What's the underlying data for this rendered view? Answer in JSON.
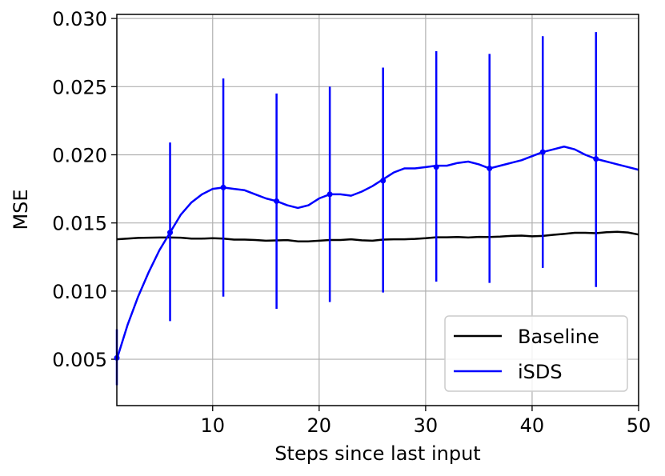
{
  "chart_data": {
    "type": "line",
    "xlabel": "Steps since last input",
    "ylabel": "MSE",
    "xlim": [
      1,
      50
    ],
    "ylim": [
      0.0016,
      0.0303
    ],
    "xticks": [
      10,
      20,
      30,
      40,
      50
    ],
    "yticks": [
      0.005,
      0.01,
      0.015,
      0.02,
      0.025,
      0.03
    ],
    "ytick_labels": [
      "0.005",
      "0.010",
      "0.015",
      "0.020",
      "0.025",
      "0.030"
    ],
    "grid": true,
    "legend_position": "lower-right",
    "series": [
      {
        "name": "Baseline",
        "color": "#000000",
        "x": [
          1,
          2,
          3,
          4,
          5,
          6,
          7,
          8,
          9,
          10,
          11,
          12,
          13,
          14,
          15,
          16,
          17,
          18,
          19,
          20,
          21,
          22,
          23,
          24,
          25,
          26,
          27,
          28,
          29,
          30,
          31,
          32,
          33,
          34,
          35,
          36,
          37,
          38,
          39,
          40,
          41,
          42,
          43,
          44,
          45,
          46,
          47,
          48,
          49,
          50
        ],
        "y": [
          0.0138,
          0.01385,
          0.0139,
          0.01392,
          0.01393,
          0.01393,
          0.01392,
          0.01385,
          0.01385,
          0.01388,
          0.01385,
          0.01378,
          0.01378,
          0.01375,
          0.0137,
          0.01372,
          0.01374,
          0.01365,
          0.01365,
          0.0137,
          0.01375,
          0.01375,
          0.0138,
          0.01373,
          0.0137,
          0.01378,
          0.0138,
          0.0138,
          0.01383,
          0.01388,
          0.01395,
          0.01395,
          0.01397,
          0.01393,
          0.01398,
          0.01397,
          0.014,
          0.01405,
          0.01407,
          0.01402,
          0.01405,
          0.01413,
          0.0142,
          0.01428,
          0.01428,
          0.01425,
          0.01432,
          0.01435,
          0.0143,
          0.01415
        ]
      },
      {
        "name": "iSDS",
        "color": "#0000ff",
        "x": [
          1,
          2,
          3,
          4,
          5,
          6,
          7,
          8,
          9,
          10,
          11,
          12,
          13,
          14,
          15,
          16,
          17,
          18,
          19,
          20,
          21,
          22,
          23,
          24,
          25,
          26,
          27,
          28,
          29,
          30,
          31,
          32,
          33,
          34,
          35,
          36,
          37,
          38,
          39,
          40,
          41,
          42,
          43,
          44,
          45,
          46,
          47,
          48,
          49,
          50
        ],
        "y": [
          0.005,
          0.0075,
          0.0096,
          0.0114,
          0.013,
          0.0143,
          0.0156,
          0.0165,
          0.0171,
          0.0175,
          0.0176,
          0.0175,
          0.0174,
          0.0171,
          0.0168,
          0.0166,
          0.0163,
          0.0161,
          0.0163,
          0.0168,
          0.0171,
          0.0171,
          0.017,
          0.0173,
          0.0177,
          0.0182,
          0.0187,
          0.019,
          0.019,
          0.0191,
          0.0192,
          0.0192,
          0.0194,
          0.0195,
          0.0193,
          0.019,
          0.0192,
          0.0194,
          0.0196,
          0.0199,
          0.0202,
          0.0204,
          0.0206,
          0.0204,
          0.02,
          0.0197,
          0.0195,
          0.0193,
          0.0191,
          0.0189
        ],
        "error_bars": [
          {
            "x": 1,
            "y": 0.0051,
            "low": 0.0031,
            "high": 0.0072
          },
          {
            "x": 6,
            "y": 0.0143,
            "low": 0.0078,
            "high": 0.0209
          },
          {
            "x": 11,
            "y": 0.0176,
            "low": 0.0096,
            "high": 0.0256
          },
          {
            "x": 16,
            "y": 0.0166,
            "low": 0.0087,
            "high": 0.0245
          },
          {
            "x": 21,
            "y": 0.0171,
            "low": 0.0092,
            "high": 0.025
          },
          {
            "x": 26,
            "y": 0.0181,
            "low": 0.0099,
            "high": 0.0264
          },
          {
            "x": 31,
            "y": 0.0191,
            "low": 0.0107,
            "high": 0.0276
          },
          {
            "x": 36,
            "y": 0.019,
            "low": 0.0106,
            "high": 0.0274
          },
          {
            "x": 41,
            "y": 0.0202,
            "low": 0.0117,
            "high": 0.0287
          },
          {
            "x": 46,
            "y": 0.0197,
            "low": 0.0103,
            "high": 0.029
          }
        ]
      }
    ]
  }
}
